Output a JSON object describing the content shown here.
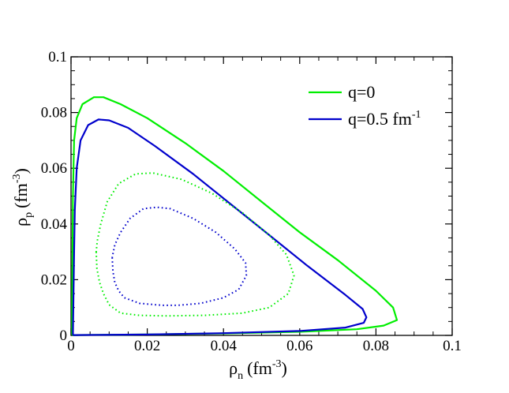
{
  "chart_data": {
    "type": "line",
    "title": "",
    "xlabel": {
      "base": "ρ",
      "sub": "n",
      "units_pre": "(fm",
      "units_sup": "-3",
      "units_post": ")"
    },
    "ylabel": {
      "base": "ρ",
      "sub": "p",
      "units_pre": "(fm",
      "units_sup": "-3",
      "units_post": ")"
    },
    "xlim": [
      0,
      0.1
    ],
    "ylim": [
      0,
      0.1
    ],
    "x_ticks": [
      0,
      0.02,
      0.04,
      0.06,
      0.08,
      0.1
    ],
    "x_tick_labels": [
      "0",
      "0.02",
      "0.04",
      "0.06",
      "0.08",
      "0.1"
    ],
    "y_ticks": [
      0,
      0.02,
      0.04,
      0.06,
      0.08,
      0.1
    ],
    "y_tick_labels": [
      "0",
      "0.02",
      "0.04",
      "0.06",
      "0.08",
      "0.1"
    ],
    "legend": {
      "position": "top-right",
      "entries": [
        {
          "label": "q=0",
          "color": "#00ee00"
        },
        {
          "label_main": "q=0.5 fm",
          "label_sup": "-1",
          "color": "#0000cc"
        }
      ]
    },
    "series": [
      {
        "name": "q=0 (solid)",
        "color": "#00ee00",
        "style": "solid",
        "points": [
          [
            0.0003,
            0.0001
          ],
          [
            0.02,
            0.0003
          ],
          [
            0.04,
            0.0007
          ],
          [
            0.06,
            0.0013
          ],
          [
            0.075,
            0.0022
          ],
          [
            0.082,
            0.0035
          ],
          [
            0.0855,
            0.0055
          ],
          [
            0.0845,
            0.01
          ],
          [
            0.08,
            0.016
          ],
          [
            0.07,
            0.027
          ],
          [
            0.06,
            0.037
          ],
          [
            0.05,
            0.048
          ],
          [
            0.04,
            0.059
          ],
          [
            0.03,
            0.069
          ],
          [
            0.02,
            0.078
          ],
          [
            0.013,
            0.083
          ],
          [
            0.0085,
            0.0855
          ],
          [
            0.006,
            0.0855
          ],
          [
            0.003,
            0.083
          ],
          [
            0.0015,
            0.078
          ],
          [
            0.0008,
            0.07
          ],
          [
            0.0005,
            0.05
          ],
          [
            0.0004,
            0.03
          ],
          [
            0.0003,
            0.01
          ],
          [
            0.0003,
            0.0001
          ]
        ]
      },
      {
        "name": "q=0.5 fm^-1 (solid)",
        "color": "#0000cc",
        "style": "solid",
        "points": [
          [
            0.0005,
            0.0001
          ],
          [
            0.02,
            0.0003
          ],
          [
            0.04,
            0.0008
          ],
          [
            0.06,
            0.0016
          ],
          [
            0.072,
            0.0028
          ],
          [
            0.0768,
            0.0045
          ],
          [
            0.0775,
            0.0065
          ],
          [
            0.0765,
            0.0095
          ],
          [
            0.072,
            0.0145
          ],
          [
            0.062,
            0.025
          ],
          [
            0.052,
            0.036
          ],
          [
            0.042,
            0.047
          ],
          [
            0.032,
            0.058
          ],
          [
            0.022,
            0.068
          ],
          [
            0.015,
            0.0745
          ],
          [
            0.01,
            0.0772
          ],
          [
            0.0072,
            0.0775
          ],
          [
            0.0045,
            0.0755
          ],
          [
            0.0025,
            0.07
          ],
          [
            0.0015,
            0.06
          ],
          [
            0.001,
            0.045
          ],
          [
            0.0008,
            0.03
          ],
          [
            0.0006,
            0.01
          ],
          [
            0.0005,
            0.0001
          ]
        ]
      },
      {
        "name": "q=0 (dotted)",
        "color": "#00ee00",
        "style": "dotted",
        "points": [
          [
            0.0066,
            0.03
          ],
          [
            0.0068,
            0.024
          ],
          [
            0.0075,
            0.019
          ],
          [
            0.0085,
            0.015
          ],
          [
            0.01,
            0.011
          ],
          [
            0.013,
            0.008
          ],
          [
            0.018,
            0.0072
          ],
          [
            0.025,
            0.007
          ],
          [
            0.035,
            0.0072
          ],
          [
            0.045,
            0.008
          ],
          [
            0.052,
            0.01
          ],
          [
            0.057,
            0.015
          ],
          [
            0.0585,
            0.0215
          ],
          [
            0.0565,
            0.029
          ],
          [
            0.052,
            0.036
          ],
          [
            0.045,
            0.044
          ],
          [
            0.037,
            0.051
          ],
          [
            0.029,
            0.056
          ],
          [
            0.0215,
            0.0583
          ],
          [
            0.017,
            0.058
          ],
          [
            0.0125,
            0.0545
          ],
          [
            0.0095,
            0.048
          ],
          [
            0.0078,
            0.04
          ],
          [
            0.0069,
            0.034
          ],
          [
            0.0066,
            0.03
          ]
        ]
      },
      {
        "name": "q=0.5 fm^-1 (dotted)",
        "color": "#0000cc",
        "style": "dotted",
        "points": [
          [
            0.0108,
            0.028
          ],
          [
            0.011,
            0.023
          ],
          [
            0.0115,
            0.019
          ],
          [
            0.0125,
            0.016
          ],
          [
            0.014,
            0.0135
          ],
          [
            0.018,
            0.0115
          ],
          [
            0.024,
            0.0108
          ],
          [
            0.028,
            0.0108
          ],
          [
            0.034,
            0.0115
          ],
          [
            0.04,
            0.0135
          ],
          [
            0.044,
            0.0165
          ],
          [
            0.046,
            0.0215
          ],
          [
            0.0458,
            0.026
          ],
          [
            0.043,
            0.031
          ],
          [
            0.038,
            0.037
          ],
          [
            0.032,
            0.042
          ],
          [
            0.026,
            0.0455
          ],
          [
            0.0225,
            0.046
          ],
          [
            0.019,
            0.0455
          ],
          [
            0.0155,
            0.042
          ],
          [
            0.013,
            0.037
          ],
          [
            0.0115,
            0.0325
          ],
          [
            0.0108,
            0.028
          ]
        ]
      }
    ]
  }
}
